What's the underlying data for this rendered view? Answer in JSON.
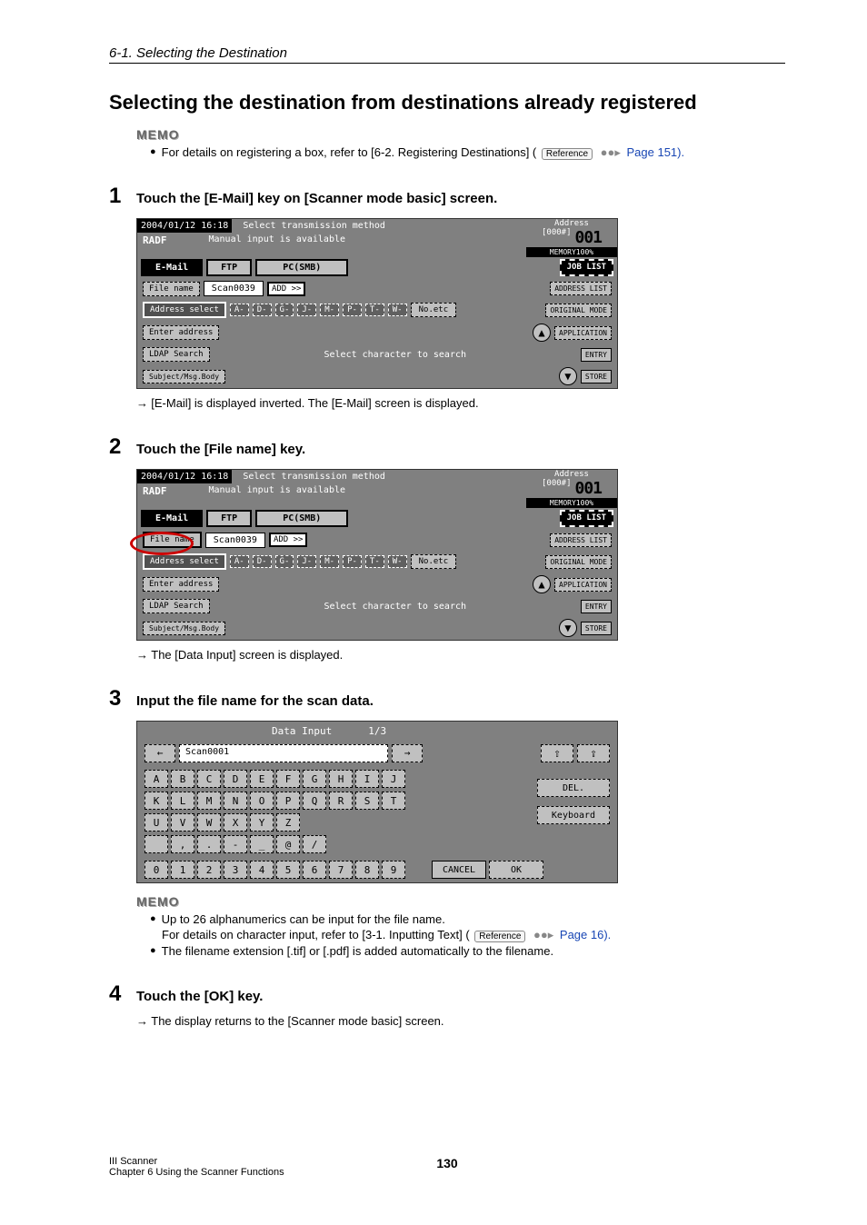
{
  "section_header": "6-1. Selecting the Destination",
  "main_heading": "Selecting the destination from destinations already registered",
  "memo_top": {
    "label": "MEMO",
    "line1_a": "For details on registering a box, refer to [6-2. Registering Destinations] (",
    "ref": "Reference",
    "line1_b": " Page 151)."
  },
  "step1": {
    "num": "1",
    "title": "Touch the [E-Mail] key on [Scanner mode basic] screen.",
    "arrow_line": "[E-Mail] is displayed inverted.  The [E-Mail] screen is displayed."
  },
  "step2": {
    "num": "2",
    "title": "Touch the [File name] key.",
    "arrow_line": "The [Data Input] screen is displayed."
  },
  "step3": {
    "num": "3",
    "title": "Input the file name for the scan data."
  },
  "step4": {
    "num": "4",
    "title": "Touch the [OK] key.",
    "arrow_line": "The display returns to the [Scanner mode basic] screen."
  },
  "memo_bottom": {
    "label": "MEMO",
    "l1": "Up to 26 alphanumerics can be input for the file name.",
    "l2a": "For details on character input, refer to [3-1. Inputting Text] (",
    "ref": "Reference",
    "l2b": " Page 16).",
    "l3": "The filename extension [.tif] or [.pdf] is added automatically to the filename."
  },
  "scanner": {
    "date": "2004/01/12 16:18",
    "msg1": "Select transmission method",
    "msg2": "Manual input is available",
    "radf": "RADF",
    "address_label": "Address",
    "address_num": "[000#]",
    "counter": "001",
    "memory": "MEMORY100%",
    "tab_email": "E-Mail",
    "tab_ftp": "FTP",
    "tab_pc": "PC(SMB)",
    "joblist": "JOB LIST",
    "filename_btn": "File name",
    "filename_val": "Scan0039",
    "add_btn": "ADD >>",
    "addr_list": "ADDRESS LIST",
    "addr_select": "Address select",
    "letters": [
      "A-",
      "D-",
      "G-",
      "J-",
      "M-",
      "P-",
      "T-",
      "W-"
    ],
    "noetc": "No.etc",
    "orig_mode": "ORIGINAL MODE",
    "enter_addr": "Enter address",
    "application": "APPLICATION",
    "ldap": "LDAP Search",
    "entry": "ENTRY",
    "subject": "Subject/Msg.Body",
    "store": "STORE",
    "search_txt": "Select character to search"
  },
  "keyboard": {
    "title": "Data Input",
    "page": "1/3",
    "value": "Scan0001",
    "nav_left": "←",
    "nav_right": "→",
    "shift_up": "⇧",
    "shift_caps": "⇪",
    "row1": [
      "A",
      "B",
      "C",
      "D",
      "E",
      "F",
      "G",
      "H",
      "I",
      "J"
    ],
    "row2": [
      "K",
      "L",
      "M",
      "N",
      "O",
      "P",
      "Q",
      "R",
      "S",
      "T"
    ],
    "row3": [
      "U",
      "V",
      "W",
      "X",
      "Y",
      "Z"
    ],
    "row4": [
      " ",
      ",",
      ".",
      "-",
      "_",
      "@",
      "/"
    ],
    "row5": [
      "0",
      "1",
      "2",
      "3",
      "4",
      "5",
      "6",
      "7",
      "8",
      "9"
    ],
    "del": "DEL.",
    "kbd_btn": "Keyboard",
    "cancel": "CANCEL",
    "ok": "OK"
  },
  "footer": {
    "l1": "III Scanner",
    "l2": "Chapter 6 Using the Scanner Functions",
    "page": "130"
  }
}
